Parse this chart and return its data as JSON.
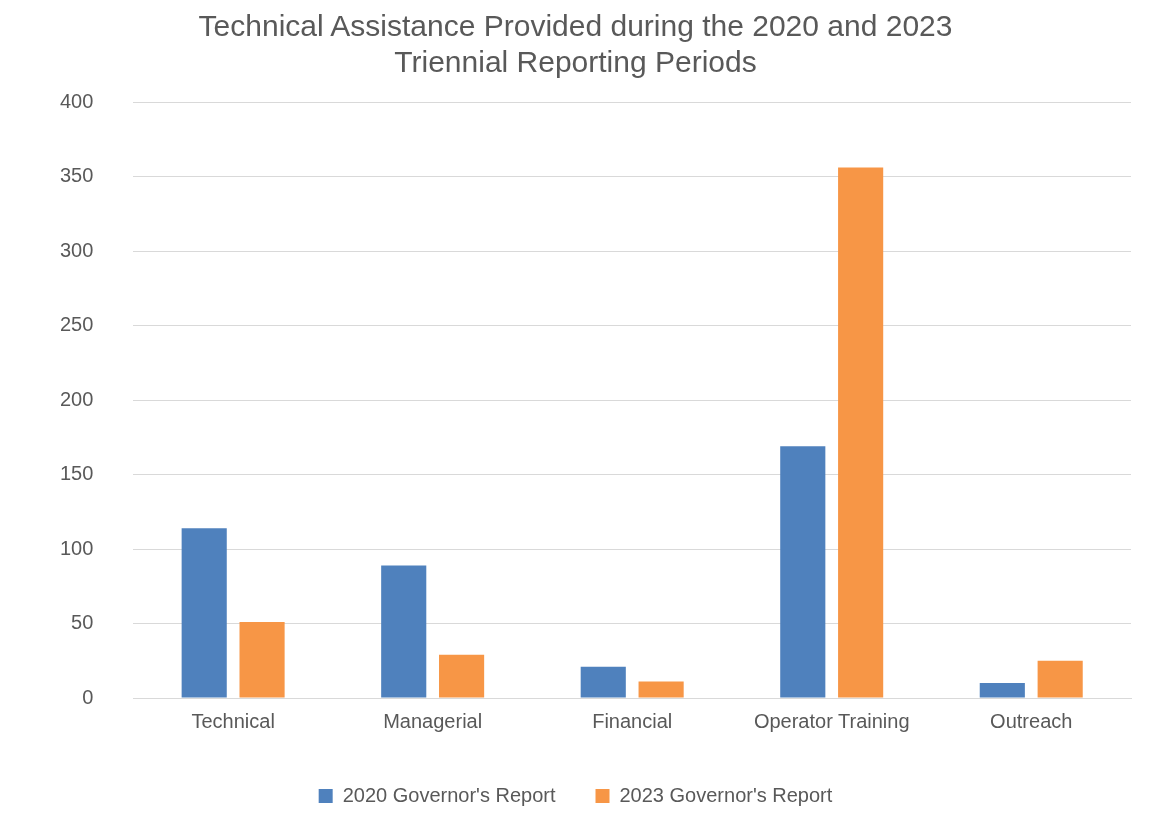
{
  "chart_data": {
    "type": "bar",
    "title": [
      "Technical Assistance Provided during the 2020 and 2023",
      "Triennial Reporting Periods"
    ],
    "categories": [
      "Technical",
      "Managerial",
      "Financial",
      "Operator Training",
      "Outreach"
    ],
    "series": [
      {
        "name": "2020 Governor's Report",
        "color": "#4f81bd",
        "values": [
          114,
          89,
          21,
          169,
          10
        ]
      },
      {
        "name": "2023 Governor's Report",
        "color": "#f79646",
        "values": [
          51,
          29,
          11,
          356,
          25
        ]
      }
    ],
    "ylim": [
      0,
      400
    ],
    "yticks": [
      0,
      50,
      100,
      150,
      200,
      250,
      300,
      350,
      400
    ],
    "grid": "y",
    "legend": "bottom"
  }
}
